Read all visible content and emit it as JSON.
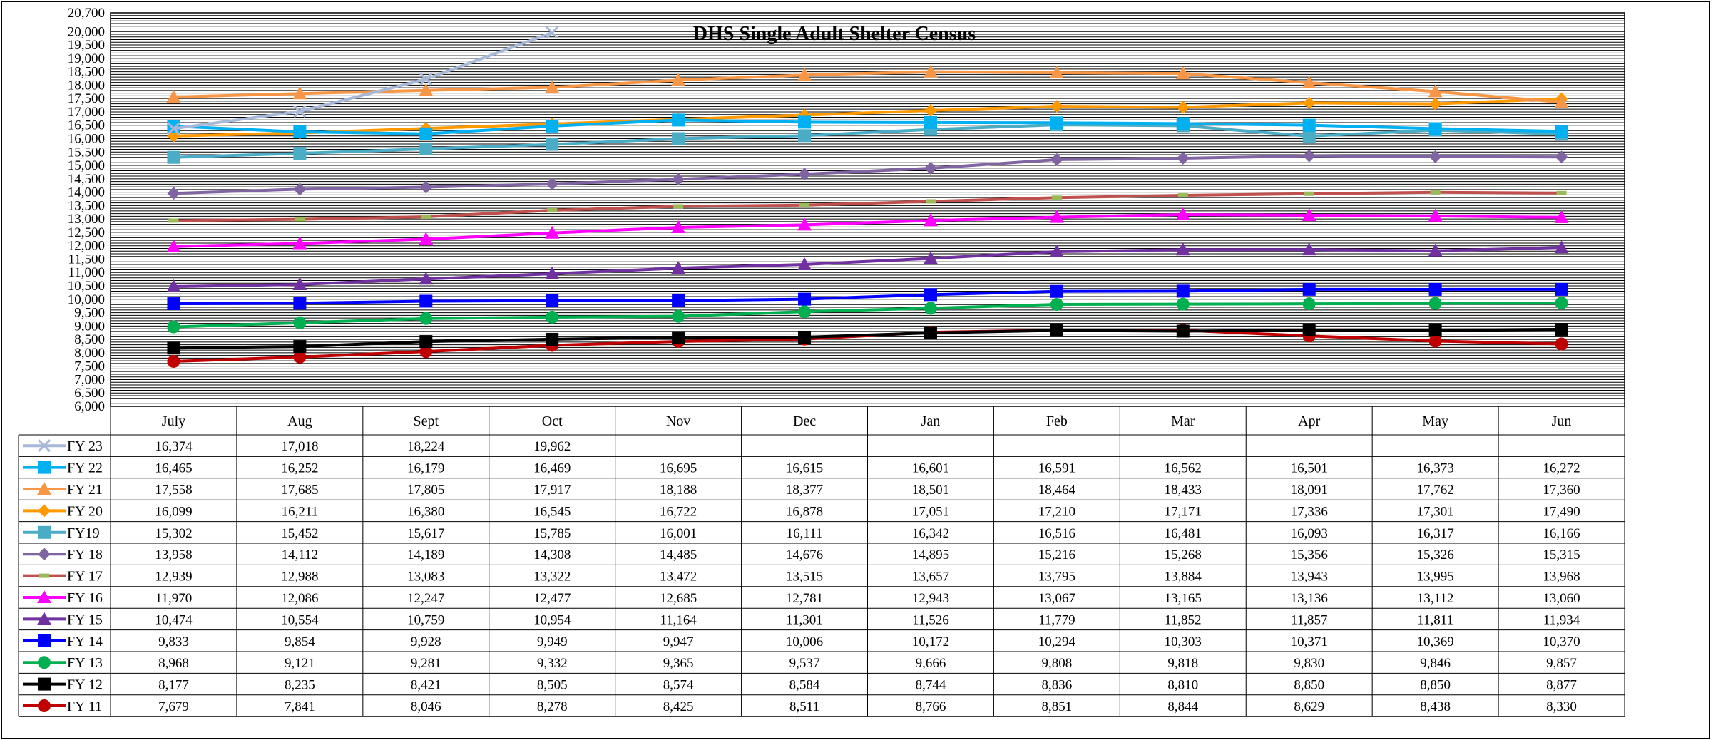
{
  "chart_data": {
    "type": "line",
    "title": "DHS Single Adult Shelter Census",
    "ylim": [
      6000,
      20700
    ],
    "ystep": 100,
    "y_ticks_listed": [
      6000,
      6500,
      7000,
      7500,
      8000,
      8500,
      9000,
      9500,
      10000,
      10500,
      11000,
      11500,
      12000,
      12500,
      13000,
      13500,
      14000,
      14500,
      15000,
      15500,
      16000,
      16500,
      17000,
      17500,
      18000,
      18500,
      19000,
      19500,
      20000,
      20700
    ],
    "categories": [
      "July",
      "Aug",
      "Sept",
      "Oct",
      "Nov",
      "Dec",
      "Jan",
      "Feb",
      "Mar",
      "Apr",
      "May",
      "Jun"
    ],
    "grid": true,
    "legend": "table-left",
    "series": [
      {
        "name": "FY 23",
        "color": "#a8b8d8",
        "marker": "x",
        "values": [
          16374,
          17018,
          18224,
          19962,
          null,
          null,
          null,
          null,
          null,
          null,
          null,
          null
        ],
        "labels": [
          "16,374",
          "17,018",
          "18,224",
          "19,962",
          "",
          "",
          "",
          "",
          "",
          "",
          "",
          ""
        ]
      },
      {
        "name": "FY 22",
        "color": "#00b0f0",
        "marker": "square",
        "values": [
          16465,
          16252,
          16179,
          16469,
          16695,
          16615,
          16601,
          16591,
          16562,
          16501,
          16373,
          16272
        ],
        "labels": [
          "16,465",
          "16,252",
          "16,179",
          "16,469",
          "16,695",
          "16,615",
          "16,601",
          "16,591",
          "16,562",
          "16,501",
          "16,373",
          "16,272"
        ]
      },
      {
        "name": "FY 21",
        "color": "#f79646",
        "marker": "triangle",
        "values": [
          17558,
          17685,
          17805,
          17917,
          18188,
          18377,
          18501,
          18464,
          18433,
          18091,
          17762,
          17360
        ],
        "labels": [
          "17,558",
          "17,685",
          "17,805",
          "17,917",
          "18,188",
          "18,377",
          "18,501",
          "18,464",
          "18,433",
          "18,091",
          "17,762",
          "17,360"
        ]
      },
      {
        "name": "FY 20",
        "color": "#ff9900",
        "marker": "diamond",
        "values": [
          16099,
          16211,
          16380,
          16545,
          16722,
          16878,
          17051,
          17210,
          17171,
          17336,
          17301,
          17490
        ],
        "labels": [
          "16,099",
          "16,211",
          "16,380",
          "16,545",
          "16,722",
          "16,878",
          "17,051",
          "17,210",
          "17,171",
          "17,336",
          "17,301",
          "17,490"
        ]
      },
      {
        "name": "FY19",
        "color": "#4bacc6",
        "marker": "square",
        "values": [
          15302,
          15452,
          15617,
          15785,
          16001,
          16111,
          16342,
          16516,
          16481,
          16093,
          16317,
          16166
        ],
        "labels": [
          "15,302",
          "15,452",
          "15,617",
          "15,785",
          "16,001",
          "16,111",
          "16,342",
          "16,516",
          "16,481",
          "16,093",
          "16,317",
          "16,166"
        ]
      },
      {
        "name": "FY 18",
        "color": "#8064a2",
        "marker": "diamond",
        "values": [
          13958,
          14112,
          14189,
          14308,
          14485,
          14676,
          14895,
          15216,
          15268,
          15356,
          15326,
          15315
        ],
        "labels": [
          "13,958",
          "14,112",
          "14,189",
          "14,308",
          "14,485",
          "14,676",
          "14,895",
          "15,216",
          "15,268",
          "15,356",
          "15,326",
          "15,315"
        ]
      },
      {
        "name": "FY 17",
        "color": "#c0504d",
        "marker": "dash",
        "values": [
          12939,
          12988,
          13083,
          13322,
          13472,
          13515,
          13657,
          13795,
          13884,
          13943,
          13995,
          13968
        ],
        "labels": [
          "12,939",
          "12,988",
          "13,083",
          "13,322",
          "13,472",
          "13,515",
          "13,657",
          "13,795",
          "13,884",
          "13,943",
          "13,995",
          "13,968"
        ]
      },
      {
        "name": "FY 16",
        "color": "#ff00ff",
        "marker": "triangle",
        "values": [
          11970,
          12086,
          12247,
          12477,
          12685,
          12781,
          12943,
          13067,
          13165,
          13136,
          13112,
          13060
        ],
        "labels": [
          "11,970",
          "12,086",
          "12,247",
          "12,477",
          "12,685",
          "12,781",
          "12,943",
          "13,067",
          "13,165",
          "13,136",
          "13,112",
          "13,060"
        ]
      },
      {
        "name": "FY 15",
        "color": "#7030a0",
        "marker": "triangle",
        "values": [
          10474,
          10554,
          10759,
          10954,
          11164,
          11301,
          11526,
          11779,
          11852,
          11857,
          11811,
          11934
        ],
        "labels": [
          "10,474",
          "10,554",
          "10,759",
          "10,954",
          "11,164",
          "11,301",
          "11,526",
          "11,779",
          "11,852",
          "11,857",
          "11,811",
          "11,934"
        ]
      },
      {
        "name": "FY 14",
        "color": "#0000ff",
        "marker": "square",
        "values": [
          9833,
          9854,
          9928,
          9949,
          9947,
          10006,
          10172,
          10294,
          10303,
          10371,
          10369,
          10370
        ],
        "labels": [
          "9,833",
          "9,854",
          "9,928",
          "9,949",
          "9,947",
          "10,006",
          "10,172",
          "10,294",
          "10,303",
          "10,371",
          "10,369",
          "10,370"
        ]
      },
      {
        "name": "FY 13",
        "color": "#00b050",
        "marker": "circle",
        "values": [
          8968,
          9121,
          9281,
          9332,
          9365,
          9537,
          9666,
          9808,
          9818,
          9830,
          9846,
          9857
        ],
        "labels": [
          "8,968",
          "9,121",
          "9,281",
          "9,332",
          "9,365",
          "9,537",
          "9,666",
          "9,808",
          "9,818",
          "9,830",
          "9,846",
          "9,857"
        ]
      },
      {
        "name": "FY 12",
        "color": "#000000",
        "marker": "square",
        "values": [
          8177,
          8235,
          8421,
          8505,
          8574,
          8584,
          8744,
          8836,
          8810,
          8850,
          8850,
          8877
        ],
        "labels": [
          "8,177",
          "8,235",
          "8,421",
          "8,505",
          "8,574",
          "8,584",
          "8,744",
          "8,836",
          "8,810",
          "8,850",
          "8,850",
          "8,877"
        ]
      },
      {
        "name": "FY 11",
        "color": "#c00000",
        "marker": "circle",
        "values": [
          7679,
          7841,
          8046,
          8278,
          8425,
          8511,
          8766,
          8851,
          8844,
          8629,
          8438,
          8330
        ],
        "labels": [
          "7,679",
          "7,841",
          "8,046",
          "8,278",
          "8,425",
          "8,511",
          "8,766",
          "8,851",
          "8,844",
          "8,629",
          "8,438",
          "8,330"
        ]
      }
    ]
  }
}
